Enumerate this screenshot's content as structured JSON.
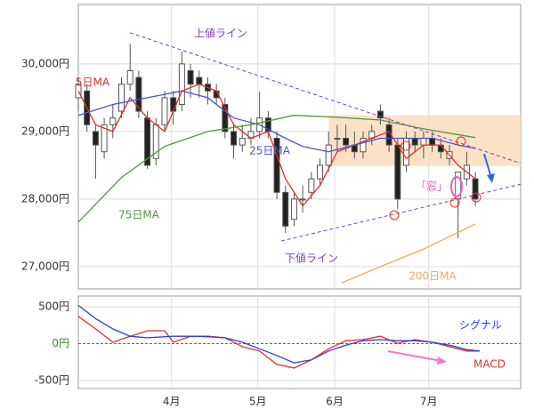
{
  "chart_data": [
    {
      "type": "candlestick",
      "xlim": [
        0,
        102.5
      ],
      "ylim": [
        26670,
        30880
      ],
      "yticks": [
        {
          "value": 27000,
          "label": "27,000円"
        },
        {
          "value": 28000,
          "label": "28,000円"
        },
        {
          "value": 29000,
          "label": "29,000円"
        },
        {
          "value": 30000,
          "label": "30,000円"
        }
      ],
      "grid": true,
      "up_color": "#ffffff",
      "down_color": "#222222",
      "candles": {
        "x": [
          0,
          2,
          4,
          6,
          8,
          10,
          12,
          14,
          16,
          18,
          20,
          22,
          24,
          26,
          28,
          30,
          32,
          34,
          36,
          38,
          40,
          42,
          44,
          46,
          48,
          50,
          52,
          54,
          56,
          58,
          60,
          62,
          64,
          66,
          68,
          70,
          72,
          74,
          76,
          78,
          80,
          82,
          84,
          86,
          88,
          90,
          92
        ],
        "open": [
          29500,
          29600,
          29000,
          28700,
          29100,
          29300,
          29700,
          29800,
          29200,
          28600,
          29100,
          29500,
          29400,
          29900,
          29800,
          29700,
          29600,
          29400,
          29000,
          28800,
          28900,
          29000,
          29200,
          28900,
          28100,
          27700,
          28000,
          28100,
          28300,
          28500,
          28900,
          28900,
          28800,
          28700,
          28900,
          29300,
          29100,
          28800,
          28500,
          28900,
          28800,
          28900,
          28800,
          28600,
          28000,
          28300,
          28300
        ],
        "high": [
          29800,
          29700,
          29100,
          29200,
          29400,
          29800,
          30300,
          29900,
          29300,
          29200,
          29600,
          29600,
          30180,
          30000,
          29900,
          29800,
          29700,
          29500,
          29100,
          29100,
          29200,
          29590,
          29300,
          29000,
          28200,
          28100,
          28200,
          28400,
          28600,
          29000,
          29100,
          29100,
          29000,
          29000,
          29100,
          29400,
          29200,
          28900,
          29000,
          29000,
          29000,
          29000,
          28900,
          28800,
          28400,
          28700,
          28400
        ],
        "low": [
          29300,
          29000,
          28300,
          28600,
          28900,
          29200,
          29600,
          29200,
          28450,
          28500,
          29000,
          29100,
          29300,
          29500,
          29500,
          29400,
          29400,
          28900,
          28600,
          28700,
          28800,
          28900,
          28900,
          28000,
          27500,
          27600,
          27800,
          28000,
          28200,
          28400,
          28700,
          28700,
          28600,
          28600,
          28800,
          29100,
          28700,
          27850,
          28400,
          28700,
          28600,
          28700,
          28600,
          28500,
          27420,
          28200,
          27900
        ],
        "close": [
          29700,
          29100,
          28800,
          29100,
          29200,
          29700,
          29900,
          29300,
          28500,
          29100,
          29500,
          29300,
          30000,
          29700,
          29700,
          29600,
          29500,
          29000,
          28800,
          28900,
          29000,
          29200,
          29000,
          28100,
          27600,
          28000,
          28000,
          28300,
          28500,
          28800,
          28900,
          28800,
          28700,
          28900,
          29000,
          29200,
          28800,
          28000,
          28900,
          28800,
          28900,
          28800,
          28700,
          28700,
          28400,
          28500,
          28000
        ]
      },
      "band": {
        "color": "#fad9b8",
        "x": [
          58,
          102.5
        ],
        "values": [
          28490,
          29240
        ]
      },
      "series": [
        {
          "name": "5日MA",
          "color": "#e0302a",
          "x": [
            0,
            4,
            8,
            12,
            16,
            20,
            24,
            28,
            32,
            36,
            40,
            44,
            48,
            52,
            56,
            60,
            64,
            68,
            72,
            76,
            80,
            84,
            88,
            92
          ],
          "values": [
            29600,
            29100,
            29000,
            29500,
            29200,
            29000,
            29600,
            29700,
            29600,
            29100,
            28900,
            29000,
            28300,
            27900,
            28200,
            28700,
            28800,
            28900,
            29000,
            28600,
            28800,
            28800,
            28500,
            28300
          ]
        },
        {
          "name": "25日MA",
          "color": "#4a55c8",
          "x": [
            0,
            8,
            16,
            24,
            30,
            36,
            42,
            48,
            52,
            58,
            64,
            70,
            76,
            82,
            88,
            92
          ],
          "values": [
            29240,
            29400,
            29500,
            29600,
            29500,
            29200,
            29100,
            28900,
            28780,
            28700,
            28800,
            28900,
            28900,
            28900,
            28800,
            28750
          ]
        },
        {
          "name": "75日MA",
          "color": "#4f9a3a",
          "x": [
            0,
            10,
            20,
            30,
            40,
            50,
            60,
            70,
            80,
            92
          ],
          "values": [
            27660,
            28320,
            28780,
            29000,
            29100,
            29240,
            29210,
            29170,
            29040,
            28910
          ]
        },
        {
          "name": "200日MA",
          "color": "#f2a65a",
          "x": [
            61,
            70,
            80,
            92
          ],
          "values": [
            26760,
            27000,
            27260,
            27630
          ]
        }
      ],
      "trendlines": [
        {
          "name": "上値ライン",
          "color": "#7b3fbf",
          "x": [
            12,
            102.5
          ],
          "values": [
            30460,
            28530
          ]
        },
        {
          "name": "下値ライン",
          "color": "#7b3fbf",
          "x": [
            47,
            102.5
          ],
          "values": [
            27380,
            28220
          ]
        }
      ],
      "annotations": [
        {
          "text": "「窓」",
          "color": "#e85fc0"
        }
      ]
    },
    {
      "type": "line",
      "xlim": [
        0,
        102.5
      ],
      "ylim": [
        -608,
        645
      ],
      "yticks": [
        {
          "value": -500,
          "label": "-500円"
        },
        {
          "value": 0,
          "label": "0円"
        },
        {
          "value": 500,
          "label": "500円"
        }
      ],
      "xticks": [
        {
          "value": 21.6,
          "label": "4月"
        },
        {
          "value": 41.6,
          "label": "5月"
        },
        {
          "value": 59.4,
          "label": "6月"
        },
        {
          "value": 81.2,
          "label": "7月"
        }
      ],
      "grid": true,
      "zero_line_color": "#3a8a2a",
      "series": [
        {
          "name": "MACD",
          "color": "#e0302a",
          "x": [
            0,
            4,
            8,
            12,
            16,
            20,
            22,
            26,
            30,
            34,
            38,
            42,
            46,
            50,
            54,
            58,
            62,
            66,
            70,
            74,
            78,
            82,
            86,
            90,
            93
          ],
          "values": [
            370,
            200,
            20,
            100,
            175,
            175,
            20,
            100,
            100,
            80,
            -40,
            -100,
            -280,
            -330,
            -220,
            -70,
            40,
            55,
            100,
            5,
            55,
            20,
            -40,
            -100,
            -100
          ]
        },
        {
          "name": "シグナル",
          "color": "#2a3fd8",
          "x": [
            0,
            4,
            8,
            12,
            16,
            22,
            28,
            34,
            38,
            42,
            46,
            50,
            54,
            58,
            62,
            66,
            70,
            74,
            78,
            82,
            86,
            90,
            93
          ],
          "values": [
            520,
            340,
            200,
            100,
            80,
            100,
            100,
            80,
            20,
            -70,
            -160,
            -260,
            -220,
            -100,
            -20,
            40,
            55,
            40,
            40,
            20,
            -20,
            -80,
            -100
          ]
        }
      ]
    }
  ]
}
